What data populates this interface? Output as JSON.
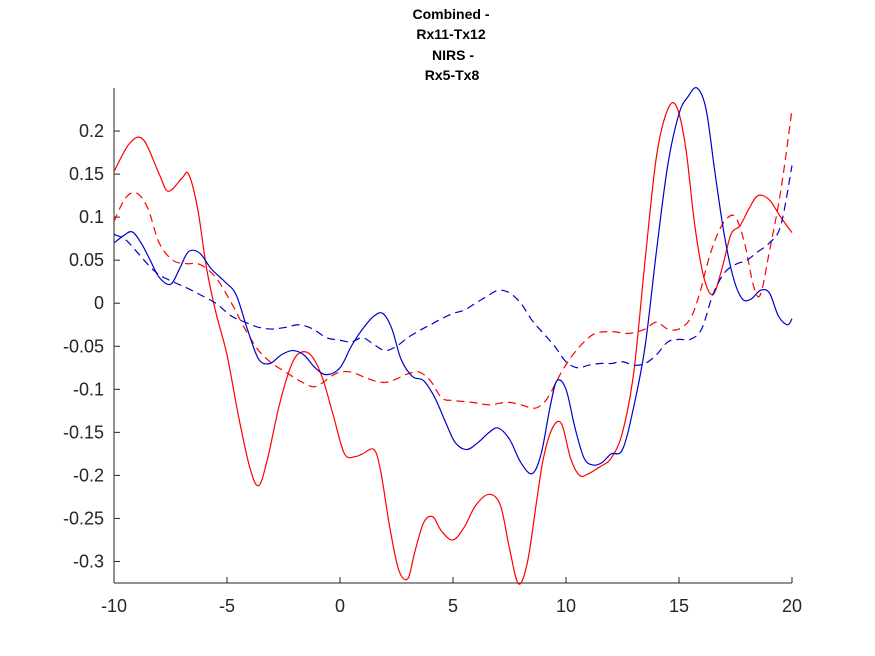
{
  "chart_data": {
    "type": "line",
    "title_lines": [
      "Combined -",
      "Rx11-Tx12",
      "NIRS -",
      "Rx5-Tx8"
    ],
    "xlabel": "",
    "ylabel": "",
    "xlim": [
      -10,
      20
    ],
    "ylim": [
      -0.325,
      0.25
    ],
    "grid": false,
    "legend": "none",
    "x_ticks": [
      -10,
      -5,
      0,
      5,
      10,
      15,
      20
    ],
    "x_tick_labels": [
      "-10",
      "-5",
      "0",
      "5",
      "10",
      "15",
      "20"
    ],
    "y_ticks": [
      0.2,
      0.15,
      0.1,
      0.05,
      0,
      -0.05,
      -0.1,
      -0.15,
      -0.2,
      -0.25,
      -0.3
    ],
    "y_tick_labels": [
      "0.2",
      "0.15",
      "0.1",
      "0.05",
      "0",
      "-0.05",
      "-0.1",
      "-0.15",
      "-0.2",
      "-0.25",
      "-0.3"
    ],
    "series": [
      {
        "color": "#ff0000",
        "dash": "solid",
        "x": [
          -10,
          -9.3,
          -8.7,
          -8.0,
          -7.6,
          -7.0,
          -6.7,
          -6.3,
          -5.9,
          -5.5,
          -5.0,
          -4.5,
          -4.0,
          -3.6,
          -3.2,
          -2.7,
          -2.2,
          -1.8,
          -1.3,
          -0.8,
          -0.3,
          0.2,
          0.7,
          1.0,
          1.5,
          1.8,
          2.2,
          2.6,
          3.0,
          3.3,
          3.7,
          4.1,
          4.5,
          5.0,
          5.5,
          6.0,
          6.6,
          7.1,
          7.5,
          7.9,
          8.3,
          8.7,
          9.0,
          9.4,
          9.8,
          10.2,
          10.6,
          11.0,
          11.5,
          12.0,
          12.5,
          13.0,
          13.5,
          14.0,
          14.5,
          14.9,
          15.3,
          15.7,
          16.1,
          16.5,
          16.9,
          17.3,
          17.7,
          18.1,
          18.5,
          19.0,
          19.5,
          20.0
        ],
        "y": [
          0.153,
          0.186,
          0.19,
          0.15,
          0.13,
          0.145,
          0.15,
          0.11,
          0.04,
          -0.01,
          -0.06,
          -0.13,
          -0.19,
          -0.212,
          -0.18,
          -0.12,
          -0.075,
          -0.058,
          -0.06,
          -0.085,
          -0.13,
          -0.175,
          -0.178,
          -0.175,
          -0.17,
          -0.195,
          -0.26,
          -0.31,
          -0.32,
          -0.29,
          -0.255,
          -0.248,
          -0.265,
          -0.275,
          -0.26,
          -0.235,
          -0.222,
          -0.235,
          -0.285,
          -0.326,
          -0.3,
          -0.23,
          -0.18,
          -0.145,
          -0.14,
          -0.18,
          -0.2,
          -0.198,
          -0.19,
          -0.18,
          -0.15,
          -0.08,
          0.05,
          0.17,
          0.225,
          0.228,
          0.18,
          0.09,
          0.03,
          0.01,
          0.04,
          0.08,
          0.09,
          0.11,
          0.125,
          0.12,
          0.1,
          0.082
        ]
      },
      {
        "color": "#ff0000",
        "dash": "dashed",
        "x": [
          -10,
          -9.5,
          -9.0,
          -8.5,
          -8.0,
          -7.4,
          -6.8,
          -6.2,
          -5.5,
          -4.8,
          -4.2,
          -3.6,
          -3.0,
          -2.4,
          -1.8,
          -1.2,
          -0.8,
          -0.4,
          0,
          0.5,
          1.0,
          1.5,
          2.0,
          2.5,
          3.0,
          3.5,
          4.0,
          4.5,
          5.0,
          5.8,
          6.6,
          7.4,
          8.0,
          8.6,
          9.0,
          9.3,
          9.8,
          10.3,
          10.8,
          11.3,
          12.0,
          12.8,
          13.5,
          14.0,
          14.5,
          15.0,
          15.5,
          15.9,
          16.3,
          16.7,
          17.1,
          17.5,
          17.9,
          18.3,
          18.6,
          19.0,
          19.5,
          20.0
        ],
        "y": [
          0.095,
          0.122,
          0.128,
          0.11,
          0.07,
          0.05,
          0.046,
          0.045,
          0.03,
          0.0,
          -0.03,
          -0.055,
          -0.07,
          -0.08,
          -0.09,
          -0.097,
          -0.093,
          -0.085,
          -0.08,
          -0.08,
          -0.085,
          -0.09,
          -0.092,
          -0.088,
          -0.082,
          -0.08,
          -0.09,
          -0.11,
          -0.113,
          -0.115,
          -0.118,
          -0.115,
          -0.118,
          -0.122,
          -0.116,
          -0.105,
          -0.08,
          -0.06,
          -0.045,
          -0.035,
          -0.033,
          -0.035,
          -0.03,
          -0.022,
          -0.03,
          -0.03,
          -0.018,
          0.01,
          0.05,
          0.08,
          0.098,
          0.1,
          0.07,
          0.02,
          0.01,
          0.06,
          0.13,
          0.225
        ]
      },
      {
        "color": "#0000cc",
        "dash": "solid",
        "x": [
          -10,
          -9.6,
          -9.2,
          -8.8,
          -8.4,
          -8.0,
          -7.5,
          -7.1,
          -6.7,
          -6.2,
          -5.7,
          -5.1,
          -4.6,
          -4.1,
          -3.6,
          -3.1,
          -2.6,
          -2.1,
          -1.6,
          -1.1,
          -0.6,
          0.0,
          0.5,
          1.0,
          1.5,
          1.9,
          2.3,
          2.7,
          3.2,
          3.7,
          4.2,
          4.7,
          5.1,
          5.6,
          6.1,
          6.6,
          7.0,
          7.5,
          8.0,
          8.5,
          8.9,
          9.3,
          9.6,
          10.0,
          10.4,
          10.8,
          11.2,
          11.6,
          12.0,
          12.5,
          13.0,
          13.5,
          14.0,
          14.5,
          15.0,
          15.4,
          15.8,
          16.2,
          16.6,
          17.0,
          17.4,
          17.8,
          18.2,
          18.6,
          19.0,
          19.4,
          19.8,
          20.0
        ],
        "y": [
          0.07,
          0.078,
          0.083,
          0.07,
          0.05,
          0.03,
          0.022,
          0.04,
          0.06,
          0.058,
          0.04,
          0.025,
          0.01,
          -0.03,
          -0.065,
          -0.07,
          -0.06,
          -0.055,
          -0.06,
          -0.075,
          -0.083,
          -0.075,
          -0.05,
          -0.03,
          -0.015,
          -0.012,
          -0.03,
          -0.065,
          -0.085,
          -0.09,
          -0.11,
          -0.14,
          -0.162,
          -0.17,
          -0.162,
          -0.15,
          -0.145,
          -0.158,
          -0.185,
          -0.198,
          -0.175,
          -0.12,
          -0.09,
          -0.1,
          -0.145,
          -0.18,
          -0.188,
          -0.185,
          -0.175,
          -0.17,
          -0.12,
          -0.05,
          0.06,
          0.16,
          0.22,
          0.24,
          0.25,
          0.225,
          0.15,
          0.08,
          0.03,
          0.005,
          0.005,
          0.015,
          0.012,
          -0.015,
          -0.025,
          -0.018
        ]
      },
      {
        "color": "#0000cc",
        "dash": "dashed",
        "x": [
          -10,
          -9.5,
          -9.0,
          -8.5,
          -8.0,
          -7.4,
          -6.8,
          -6.2,
          -5.5,
          -4.8,
          -4.2,
          -3.6,
          -3.0,
          -2.4,
          -1.8,
          -1.2,
          -0.6,
          0,
          0.5,
          1.0,
          1.5,
          2.0,
          2.5,
          3.0,
          3.5,
          4.0,
          4.5,
          5.0,
          5.5,
          6.0,
          6.5,
          7.0,
          7.5,
          8.0,
          8.5,
          9.0,
          9.5,
          10.0,
          10.5,
          11.0,
          11.5,
          12.0,
          12.5,
          13.0,
          13.5,
          14.0,
          14.5,
          15.0,
          15.5,
          16.0,
          16.5,
          17.0,
          17.5,
          18.0,
          18.5,
          19.0,
          19.5,
          20.0
        ],
        "y": [
          0.08,
          0.074,
          0.06,
          0.045,
          0.033,
          0.025,
          0.018,
          0.01,
          0.0,
          -0.015,
          -0.022,
          -0.028,
          -0.03,
          -0.028,
          -0.025,
          -0.03,
          -0.04,
          -0.043,
          -0.045,
          -0.04,
          -0.048,
          -0.055,
          -0.05,
          -0.04,
          -0.032,
          -0.025,
          -0.018,
          -0.012,
          -0.008,
          0.0,
          0.008,
          0.015,
          0.012,
          0.0,
          -0.02,
          -0.035,
          -0.05,
          -0.068,
          -0.075,
          -0.072,
          -0.07,
          -0.07,
          -0.068,
          -0.072,
          -0.07,
          -0.06,
          -0.045,
          -0.042,
          -0.042,
          -0.03,
          0.01,
          0.035,
          0.045,
          0.05,
          0.06,
          0.07,
          0.09,
          0.16
        ]
      }
    ]
  }
}
